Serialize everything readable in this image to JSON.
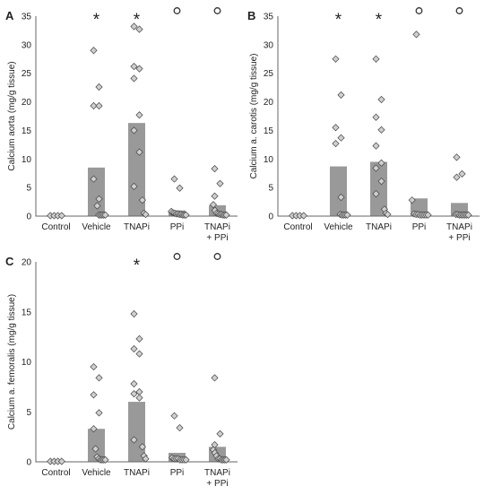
{
  "chart_data": [
    {
      "type": "bar",
      "panel": "A",
      "ylabel": "Calcium aorta (mg/g tissue)",
      "ylim": [
        0,
        35
      ],
      "yticks": [
        "0",
        "5",
        "10",
        "15",
        "20",
        "25",
        "30",
        "35"
      ],
      "categories": [
        {
          "label": "Control",
          "label2": ""
        },
        {
          "label": "Vehicle",
          "label2": ""
        },
        {
          "label": "TNAPi",
          "label2": ""
        },
        {
          "label": "PPi",
          "label2": ""
        },
        {
          "label": "TNAPi",
          "label2": "+ PPi"
        }
      ],
      "means": [
        0,
        8.5,
        16.3,
        1.0,
        1.9
      ],
      "points": [
        [
          0,
          0,
          0,
          0
        ],
        [
          29.0,
          22.6,
          19.3,
          19.3,
          6.5,
          3.0,
          1.8,
          0.2,
          0.2,
          0.2,
          0.2,
          0.2
        ],
        [
          33.2,
          32.7,
          26.2,
          25.8,
          24.1,
          17.7,
          15.0,
          11.2,
          5.2,
          2.8,
          0.5,
          0.3
        ],
        [
          6.5,
          4.9,
          0.8,
          0.6,
          0.5,
          0.4,
          0.4,
          0.3,
          0.3,
          0.2,
          0.2,
          0.2
        ],
        [
          8.3,
          5.7,
          3.5,
          2.0,
          1.0,
          0.5,
          0.4,
          0.3,
          0.3,
          0.2,
          0.2,
          0.2
        ]
      ],
      "markers": [
        "",
        "*",
        "*",
        "o",
        "o"
      ]
    },
    {
      "type": "bar",
      "panel": "B",
      "ylabel": "Calcium a. carotis (mg/g tissue)",
      "ylim": [
        0,
        35
      ],
      "yticks": [
        "0",
        "5",
        "10",
        "15",
        "20",
        "25",
        "30",
        "35"
      ],
      "categories": [
        {
          "label": "Control",
          "label2": ""
        },
        {
          "label": "Vehicle",
          "label2": ""
        },
        {
          "label": "TNAPi",
          "label2": ""
        },
        {
          "label": "PPi",
          "label2": ""
        },
        {
          "label": "TNAPi",
          "label2": "+ PPi"
        }
      ],
      "means": [
        0,
        8.7,
        9.5,
        3.1,
        2.3
      ],
      "points": [
        [
          0,
          0,
          0,
          0
        ],
        [
          27.5,
          21.2,
          15.5,
          13.7,
          12.7,
          3.3,
          0.3,
          0.2,
          0.2,
          0.2,
          0.2
        ],
        [
          27.5,
          20.4,
          17.3,
          15.1,
          12.3,
          9.3,
          8.4,
          6.1,
          3.9,
          1.2,
          0.5,
          0.3
        ],
        [
          31.8,
          2.8,
          0.4,
          0.3,
          0.3,
          0.2,
          0.2,
          0.2,
          0.2,
          0.2
        ],
        [
          10.3,
          7.4,
          6.8,
          0.3,
          0.3,
          0.2,
          0.2,
          0.2,
          0.2,
          0.2,
          0.2
        ]
      ],
      "markers": [
        "",
        "*",
        "*",
        "o",
        "o"
      ]
    },
    {
      "type": "bar",
      "panel": "C",
      "ylabel": "Calcium a. femoralis (mg/g tissue)",
      "ylim": [
        0,
        20
      ],
      "yticks": [
        "0",
        "5",
        "10",
        "15",
        "20"
      ],
      "categories": [
        {
          "label": "Control",
          "label2": ""
        },
        {
          "label": "Vehicle",
          "label2": ""
        },
        {
          "label": "TNAPi",
          "label2": ""
        },
        {
          "label": "PPi",
          "label2": ""
        },
        {
          "label": "TNAPi",
          "label2": "+ PPi"
        }
      ],
      "means": [
        0,
        3.3,
        6.0,
        0.9,
        1.5
      ],
      "points": [
        [
          0,
          0,
          0,
          0
        ],
        [
          9.5,
          8.4,
          6.7,
          4.9,
          3.3,
          1.3,
          0.5,
          0.3,
          0.2,
          0.2,
          0.2,
          0.2
        ],
        [
          14.8,
          12.3,
          11.3,
          10.8,
          7.8,
          7.0,
          6.8,
          6.4,
          2.2,
          1.5,
          0.6,
          0.3
        ],
        [
          4.6,
          3.4,
          0.4,
          0.3,
          0.3,
          0.3,
          0.2,
          0.2,
          0.2,
          0.2
        ],
        [
          8.4,
          2.8,
          1.7,
          1.2,
          0.9,
          0.6,
          0.3,
          0.3,
          0.2,
          0.2,
          0.2,
          0.2
        ]
      ],
      "markers": [
        "",
        "",
        "*",
        "o",
        "o"
      ]
    }
  ]
}
